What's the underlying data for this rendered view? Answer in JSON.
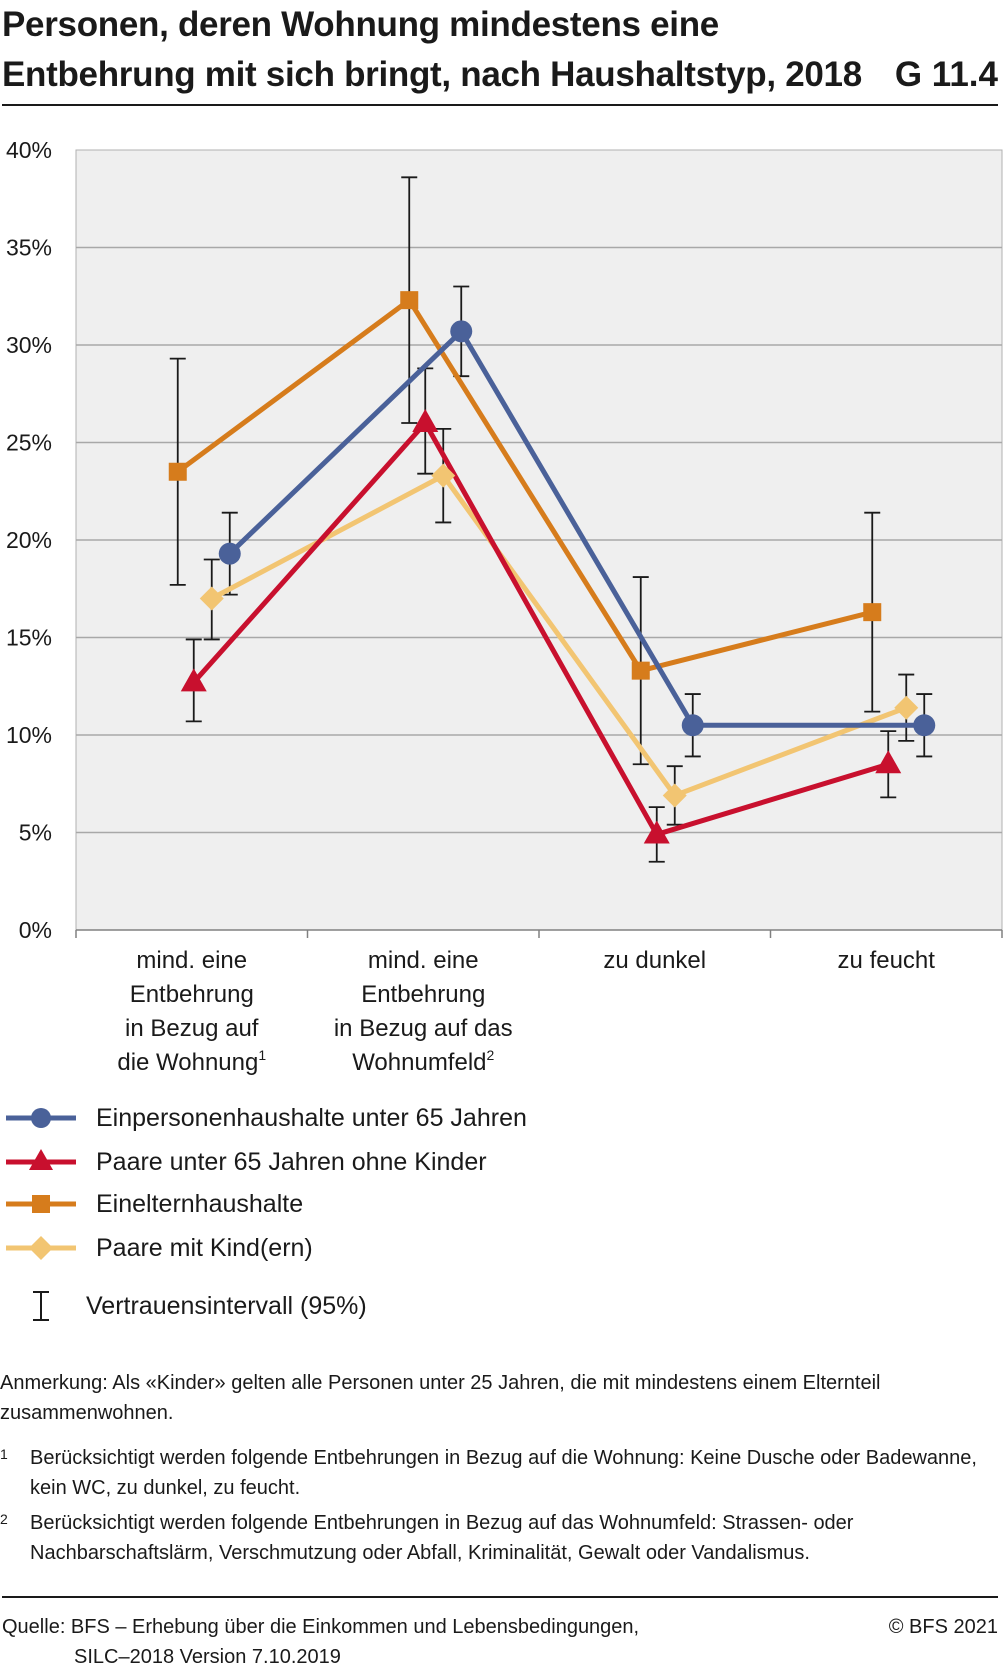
{
  "header": {
    "title": "Personen, deren Wohnung mindestens eine Entbehrung mit sich bringt, nach Haushaltstyp, 2018",
    "code": "G 11.4"
  },
  "chart_data": {
    "type": "line",
    "categories": [
      {
        "lines": [
          "mind. eine",
          "Entbehrung",
          "in Bezug auf",
          "die Wohnung"
        ],
        "sup": "1"
      },
      {
        "lines": [
          "mind. eine",
          "Entbehrung",
          "in Bezug auf das",
          "Wohnumfeld"
        ],
        "sup": "2"
      },
      {
        "lines": [
          "zu dunkel"
        ],
        "sup": ""
      },
      {
        "lines": [
          "zu feucht"
        ],
        "sup": ""
      }
    ],
    "yticks": [
      "0%",
      "5%",
      "10%",
      "15%",
      "20%",
      "25%",
      "30%",
      "35%",
      "40%"
    ],
    "ylim": [
      0,
      40
    ],
    "grid": true,
    "series": [
      {
        "name": "Einpersonenhaushalte unter 65 Jahren",
        "color": "#4a6199",
        "marker": "circle",
        "values": [
          19.3,
          30.7,
          10.5,
          10.5
        ],
        "ci_low": [
          17.2,
          28.4,
          8.9,
          8.9
        ],
        "ci_high": [
          21.4,
          33.0,
          12.1,
          12.1
        ]
      },
      {
        "name": "Paare unter 65 Jahren ohne Kinder",
        "color": "#c8102e",
        "marker": "triangle",
        "values": [
          12.7,
          26.0,
          4.9,
          8.5
        ],
        "ci_low": [
          10.7,
          23.4,
          3.5,
          6.8
        ],
        "ci_high": [
          14.9,
          28.8,
          6.3,
          10.2
        ]
      },
      {
        "name": "Einelternhaushalte",
        "color": "#d67c1c",
        "marker": "square",
        "values": [
          23.5,
          32.3,
          13.3,
          16.3
        ],
        "ci_low": [
          17.7,
          26.0,
          8.5,
          11.2
        ],
        "ci_high": [
          29.3,
          38.6,
          18.1,
          21.4
        ]
      },
      {
        "name": "Paare mit Kind(ern)",
        "color": "#f2c572",
        "marker": "diamond",
        "values": [
          17.0,
          23.3,
          6.9,
          11.4
        ],
        "ci_low": [
          14.9,
          20.9,
          5.4,
          9.7
        ],
        "ci_high": [
          19.0,
          25.7,
          8.4,
          13.1
        ]
      }
    ],
    "ci_label": "Vertrauensintervall (95%)"
  },
  "notes": {
    "remark": "Anmerkung: Als «Kinder» gelten alle Personen unter 25 Jahren, die mit mindestens einem Elternteil zusammenwohnen.",
    "footnote1_mark": "1",
    "footnote1": "Berücksichtigt werden folgende Entbehrungen in Bezug auf die Wohnung: Keine Dusche oder Badewanne, kein WC, zu dunkel, zu feucht.",
    "footnote2_mark": "2",
    "footnote2": "Berücksichtigt werden folgende Entbehrungen in Bezug auf das Wohnumfeld: Strassen- oder Nachbarschaftslärm, Verschmutzung oder Abfall, Kriminalität, Gewalt oder Vandalismus."
  },
  "footer": {
    "source_line1": "Quelle: BFS – Erhebung über die Einkommen und Lebensbedingungen,",
    "source_line2": "SILC–2018 Version 7.10.2019",
    "copyright": "© BFS 2021"
  }
}
